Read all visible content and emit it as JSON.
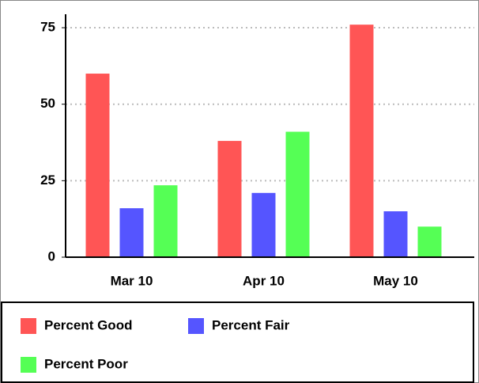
{
  "chart_data": {
    "type": "bar",
    "categories": [
      "Mar 10",
      "Apr 10",
      "May 10"
    ],
    "series": [
      {
        "name": "Percent Good",
        "color": "#ff5555",
        "values": [
          60,
          38,
          76
        ]
      },
      {
        "name": "Percent Fair",
        "color": "#5555ff",
        "values": [
          16,
          21,
          15
        ]
      },
      {
        "name": "Percent Poor",
        "color": "#55ff55",
        "values": [
          23.5,
          41,
          10
        ]
      }
    ],
    "ylim": [
      0,
      80
    ],
    "yticks": [
      0,
      25,
      50,
      75
    ],
    "grid": true,
    "legend": "bottom"
  }
}
